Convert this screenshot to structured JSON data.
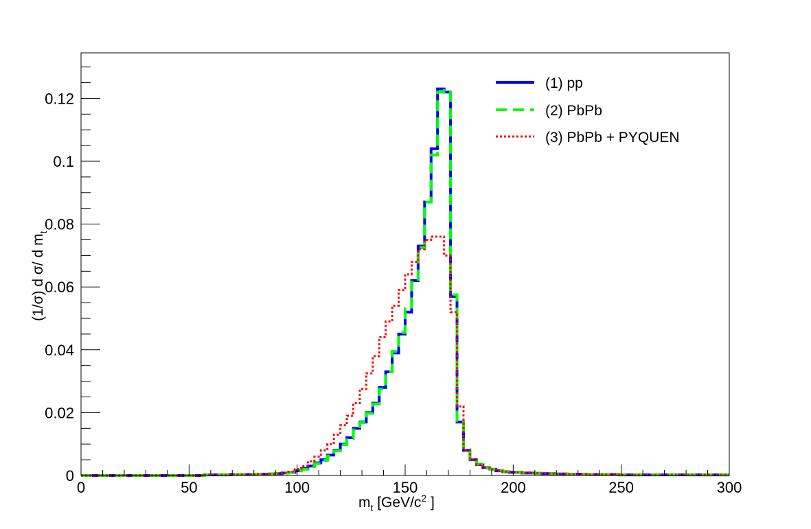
{
  "chart_data": {
    "type": "line",
    "title": "",
    "xlabel": {
      "base": "m",
      "sub": "t",
      "unit_pre": " [GeV/c",
      "unit_sup": "2",
      "unit_post": " ]"
    },
    "ylabel": {
      "text": "(1/σ) d σ/ d m",
      "sub": "t"
    },
    "xlim": [
      0,
      300
    ],
    "ylim": [
      0,
      0.1345
    ],
    "x_ticks": [
      0,
      50,
      100,
      150,
      200,
      250,
      300
    ],
    "x_tick_labels": [
      "0",
      "50",
      "100",
      "150",
      "200",
      "250",
      "300"
    ],
    "y_ticks": [
      0,
      0.02,
      0.04,
      0.06,
      0.08,
      0.1,
      0.12
    ],
    "y_tick_labels": [
      "0",
      "0.02",
      "0.04",
      "0.06",
      "0.08",
      "0.1",
      "0.12"
    ],
    "grid": false,
    "legend_position": "top-right",
    "bin_edges": [
      0,
      3,
      6,
      9,
      12,
      15,
      18,
      21,
      24,
      27,
      30,
      33,
      36,
      39,
      42,
      45,
      48,
      51,
      54,
      57,
      60,
      63,
      66,
      69,
      72,
      75,
      78,
      81,
      84,
      87,
      90,
      93,
      96,
      99,
      102,
      105,
      108,
      111,
      114,
      117,
      120,
      123,
      126,
      129,
      132,
      135,
      138,
      141,
      144,
      147,
      150,
      153,
      156,
      159,
      162,
      165,
      168,
      171,
      174,
      177,
      180,
      183,
      186,
      189,
      192,
      195,
      198,
      201,
      204,
      207,
      210,
      213,
      216,
      219,
      222,
      225,
      228,
      231,
      234,
      237,
      240,
      243,
      246,
      249,
      252,
      255,
      258,
      261,
      264,
      267,
      270,
      273,
      276,
      279,
      282,
      285,
      288,
      291,
      294,
      297,
      300
    ],
    "series": [
      {
        "name": "(1) pp",
        "color": "#0000ff",
        "style": "solid",
        "values": [
          0,
          0,
          0,
          0,
          0,
          0,
          0,
          0,
          0,
          0,
          0,
          0,
          0,
          0,
          0,
          0,
          0,
          0,
          0,
          0.0002,
          0.0002,
          0.0002,
          0.0002,
          0.0003,
          0.0003,
          0.0003,
          0.0003,
          0.0004,
          0.0004,
          0.0005,
          0.0006,
          0.0008,
          0.001,
          0.0015,
          0.0022,
          0.003,
          0.004,
          0.005,
          0.0065,
          0.008,
          0.01,
          0.012,
          0.015,
          0.017,
          0.02,
          0.023,
          0.028,
          0.033,
          0.039,
          0.045,
          0.052,
          0.062,
          0.073,
          0.087,
          0.104,
          0.123,
          0.122,
          0.057,
          0.017,
          0.008,
          0.005,
          0.0035,
          0.0025,
          0.002,
          0.0015,
          0.0012,
          0.001,
          0.001,
          0.0008,
          0.0008,
          0.0007,
          0.0006,
          0.0006,
          0.0005,
          0.0005,
          0.0004,
          0.0004,
          0.0004,
          0.0003,
          0.0003,
          0.0003,
          0.0003,
          0.0003,
          0.0002,
          0.0002,
          0.0002,
          0.0002,
          0.0002,
          0.0002,
          0.0002,
          0.0002,
          0.0002,
          0.0002,
          0.0002,
          0.0002,
          0.0002,
          0.0002,
          0.0002,
          0.0002,
          0.0002
        ]
      },
      {
        "name": "(2) PbPb",
        "color": "#00ff00",
        "style": "dashed",
        "values": [
          0,
          0,
          0,
          0,
          0,
          0,
          0,
          0,
          0,
          0,
          0,
          0,
          0,
          0,
          0,
          0,
          0,
          0,
          0,
          0.0002,
          0.0002,
          0.0002,
          0.0002,
          0.0003,
          0.0003,
          0.0003,
          0.0003,
          0.0004,
          0.0004,
          0.0005,
          0.0006,
          0.0008,
          0.001,
          0.0015,
          0.002,
          0.0028,
          0.0038,
          0.0048,
          0.0062,
          0.0078,
          0.0098,
          0.0118,
          0.0145,
          0.0168,
          0.0198,
          0.0228,
          0.0275,
          0.033,
          0.0395,
          0.0455,
          0.053,
          0.0615,
          0.0725,
          0.087,
          0.102,
          0.122,
          0.1225,
          0.0575,
          0.0175,
          0.0082,
          0.0052,
          0.0036,
          0.0026,
          0.002,
          0.0016,
          0.0013,
          0.0011,
          0.001,
          0.0009,
          0.0008,
          0.0007,
          0.0006,
          0.0006,
          0.0005,
          0.0005,
          0.0004,
          0.0004,
          0.0004,
          0.0003,
          0.0003,
          0.0003,
          0.0003,
          0.0003,
          0.0002,
          0.0002,
          0.0002,
          0.0002,
          0.0002,
          0.0002,
          0.0002,
          0.0002,
          0.0002,
          0.0002,
          0.0002,
          0.0002,
          0.0002,
          0.0002,
          0.0002,
          0.0002,
          0.0002
        ]
      },
      {
        "name": "(3) PbPb + PYQUEN",
        "color": "#ff0000",
        "style": "dotted",
        "values": [
          0,
          0,
          0,
          0,
          0,
          0,
          0,
          0,
          0,
          0,
          0,
          0,
          0,
          0,
          0,
          0,
          0,
          0,
          0,
          0.0002,
          0.0002,
          0.0002,
          0.0002,
          0.0003,
          0.0003,
          0.0003,
          0.0003,
          0.0004,
          0.0004,
          0.0005,
          0.0006,
          0.0008,
          0.0012,
          0.002,
          0.003,
          0.0045,
          0.006,
          0.008,
          0.01,
          0.013,
          0.016,
          0.019,
          0.023,
          0.0275,
          0.0325,
          0.038,
          0.044,
          0.049,
          0.054,
          0.059,
          0.064,
          0.068,
          0.072,
          0.075,
          0.076,
          0.076,
          0.07,
          0.052,
          0.022,
          0.008,
          0.005,
          0.0035,
          0.0025,
          0.002,
          0.0015,
          0.0012,
          0.001,
          0.001,
          0.0008,
          0.0008,
          0.0007,
          0.0006,
          0.0006,
          0.0005,
          0.0005,
          0.0004,
          0.0004,
          0.0004,
          0.0003,
          0.0003,
          0.0003,
          0.0003,
          0.0003,
          0.0002,
          0.0002,
          0.0002,
          0.0002,
          0.0002,
          0.0002,
          0.0002,
          0.0002,
          0.0002,
          0.0002,
          0.0002,
          0.0002,
          0.0002,
          0.0002,
          0.0002,
          0.0002,
          0.0002
        ]
      }
    ]
  }
}
